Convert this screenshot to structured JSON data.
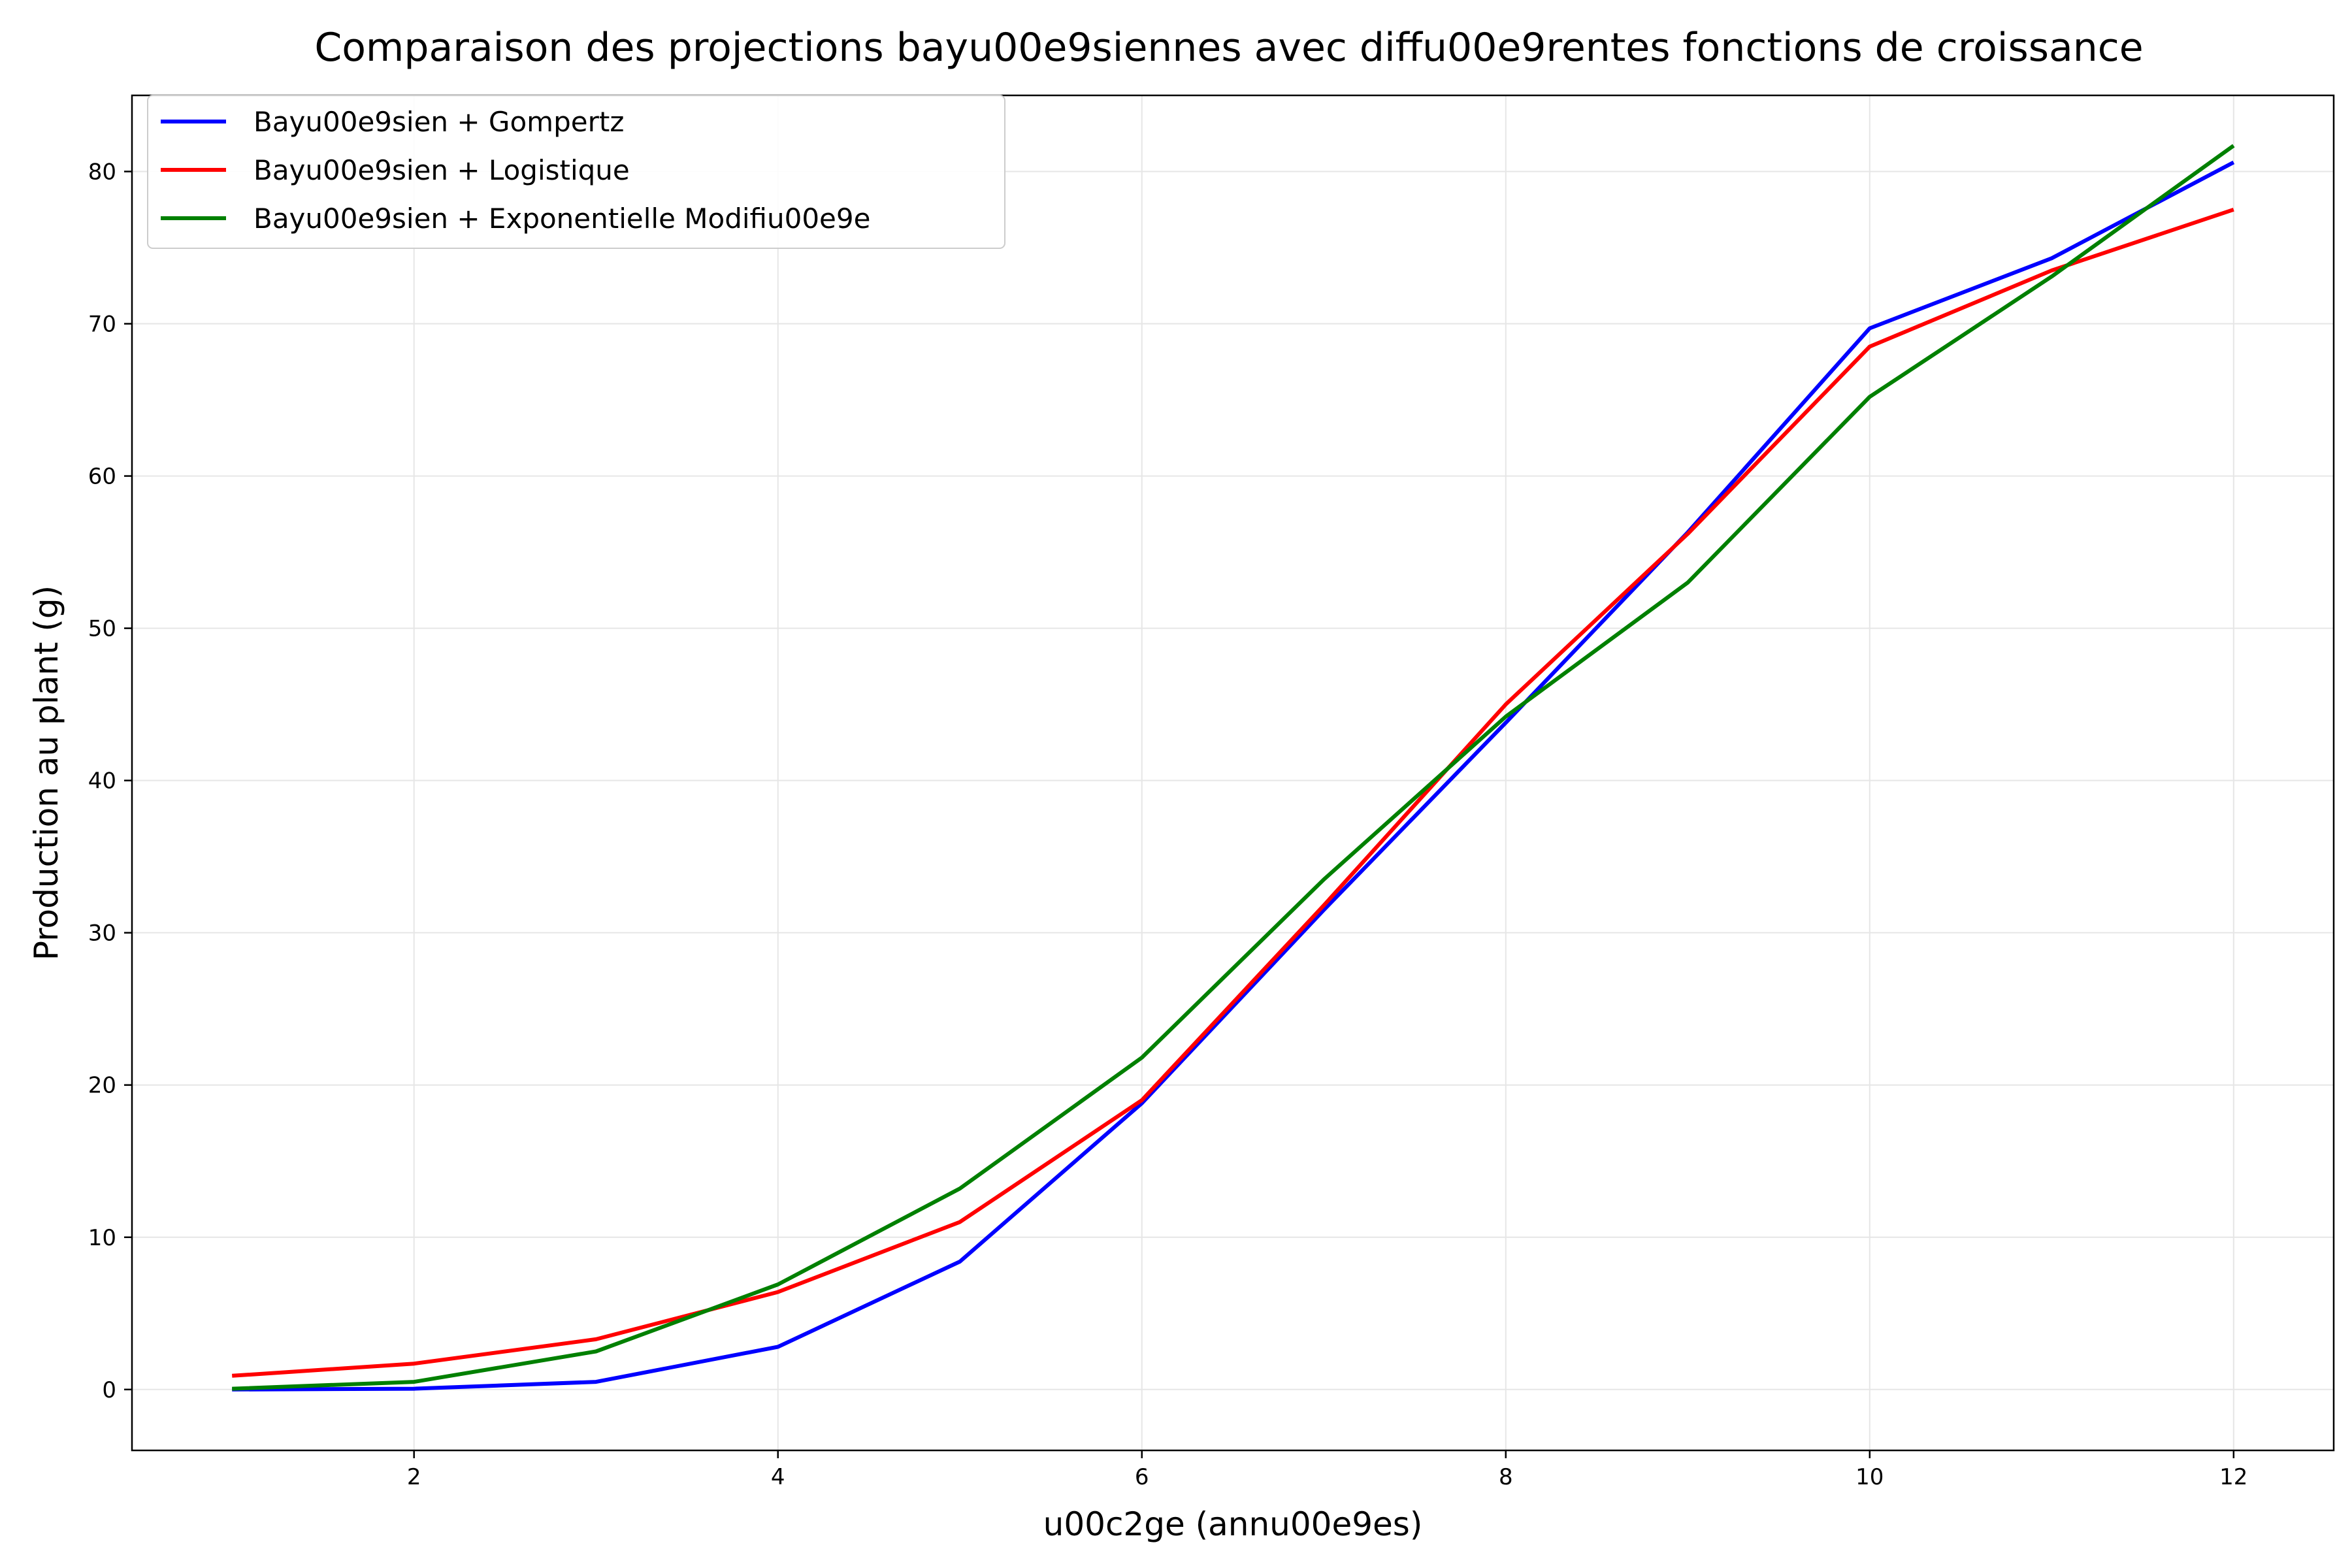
{
  "chart_data": {
    "type": "line",
    "title": "Comparaison des projections bayu00e9siennes avec diffu00e9rentes fonctions de croissance",
    "xlabel": "u00c2ge (annu00e9es)",
    "ylabel": "Production au plant (g)",
    "xlim": [
      0.45,
      12.55
    ],
    "ylim": [
      -4,
      85
    ],
    "xticks": [
      2,
      4,
      6,
      8,
      10,
      12
    ],
    "yticks": [
      0,
      10,
      20,
      30,
      40,
      50,
      60,
      70,
      80
    ],
    "grid": true,
    "legend_position": "top-left",
    "x": [
      1,
      2,
      3,
      4,
      5,
      6,
      7,
      8,
      9,
      10,
      11,
      12
    ],
    "series": [
      {
        "name": "Bayu00e9sien + Gompertz",
        "color": "#0000ff",
        "values": [
          0.0,
          0.05,
          0.5,
          2.8,
          8.4,
          18.8,
          31.5,
          43.8,
          56.3,
          69.7,
          74.3,
          80.6
        ]
      },
      {
        "name": "Bayu00e9sien + Logistique",
        "color": "#ff0000",
        "values": [
          0.9,
          1.7,
          3.3,
          6.4,
          11.0,
          19.0,
          31.8,
          45.0,
          56.2,
          68.5,
          73.5,
          77.5
        ]
      },
      {
        "name": "Bayu00e9sien + Exponentielle Modifiu00e9e",
        "color": "#008000",
        "values": [
          0.05,
          0.5,
          2.5,
          6.9,
          13.2,
          21.8,
          33.5,
          44.2,
          53.0,
          65.2,
          73.1,
          81.7
        ]
      }
    ]
  }
}
